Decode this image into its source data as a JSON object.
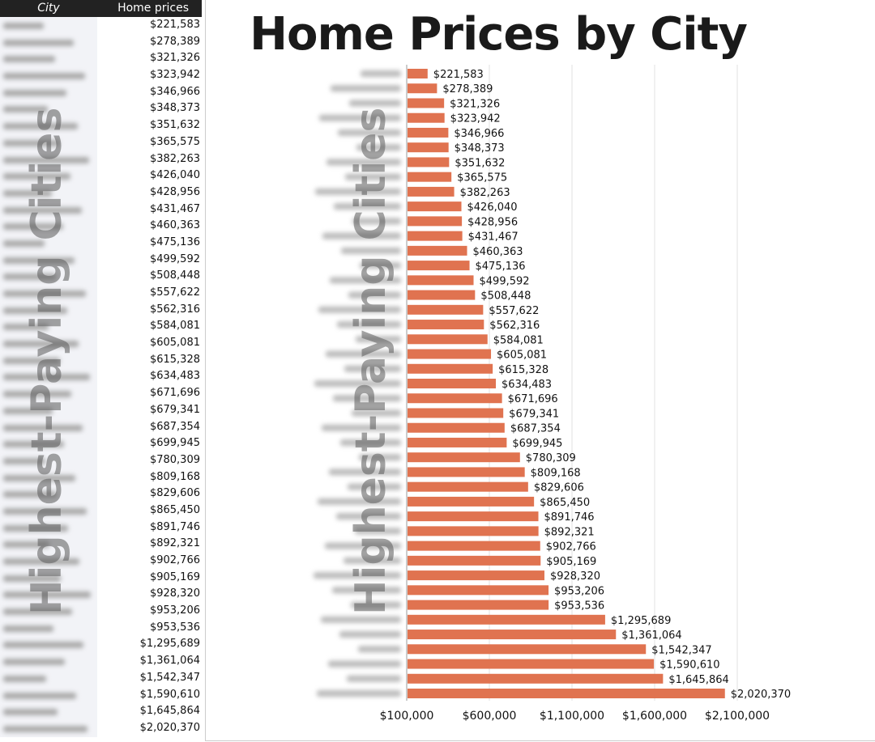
{
  "table": {
    "headers": [
      "City",
      "Home prices"
    ],
    "prices": [
      "$221,583",
      "$278,389",
      "$321,326",
      "$323,942",
      "$346,966",
      "$348,373",
      "$351,632",
      "$365,575",
      "$382,263",
      "$426,040",
      "$428,956",
      "$431,467",
      "$460,363",
      "$475,136",
      "$499,592",
      "$508,448",
      "$557,622",
      "$562,316",
      "$584,081",
      "$605,081",
      "$615,328",
      "$634,483",
      "$671,696",
      "$679,341",
      "$687,354",
      "$699,945",
      "$780,309",
      "$809,168",
      "$829,606",
      "$865,450",
      "$891,746",
      "$892,321",
      "$902,766",
      "$905,169",
      "$928,320",
      "$953,206",
      "$953,536",
      "$1,295,689",
      "$1,361,064",
      "$1,542,347",
      "$1,590,610",
      "$1,645,864",
      "$2,020,370"
    ]
  },
  "watermark": "Highest-Paying Cities",
  "chart_data": {
    "type": "bar",
    "orientation": "horizontal",
    "title": "Home Prices by City",
    "bar_color": "#e07350",
    "values": [
      221583,
      278389,
      321326,
      323942,
      346966,
      348373,
      351632,
      365575,
      382263,
      426040,
      428956,
      431467,
      460363,
      475136,
      499592,
      508448,
      557622,
      562316,
      584081,
      605081,
      615328,
      634483,
      671696,
      679341,
      687354,
      699945,
      780309,
      809168,
      829606,
      865450,
      891746,
      892321,
      902766,
      905169,
      928320,
      953206,
      953536,
      1295689,
      1361064,
      1542347,
      1590610,
      1645864,
      2020370
    ],
    "labels": [
      "$221,583",
      "$278,389",
      "$321,326",
      "$323,942",
      "$346,966",
      "$348,373",
      "$351,632",
      "$365,575",
      "$382,263",
      "$426,040",
      "$428,956",
      "$431,467",
      "$460,363",
      "$475,136",
      "$499,592",
      "$508,448",
      "$557,622",
      "$562,316",
      "$584,081",
      "$605,081",
      "$615,328",
      "$634,483",
      "$671,696",
      "$679,341",
      "$687,354",
      "$699,945",
      "$780,309",
      "$809,168",
      "$829,606",
      "$865,450",
      "$891,746",
      "$892,321",
      "$902,766",
      "$905,169",
      "$928,320",
      "$953,206",
      "$953,536",
      "$1,295,689",
      "$1,361,064",
      "$1,542,347",
      "$1,590,610",
      "$1,645,864",
      "$2,020,370"
    ],
    "xlim": [
      100000,
      2100000
    ],
    "xticks": [
      100000,
      600000,
      1100000,
      1600000,
      2100000
    ],
    "xtick_labels": [
      "$100,000",
      "$600,000",
      "$1,100,000",
      "$1,600,000",
      "$2,100,000"
    ],
    "grid": true
  }
}
